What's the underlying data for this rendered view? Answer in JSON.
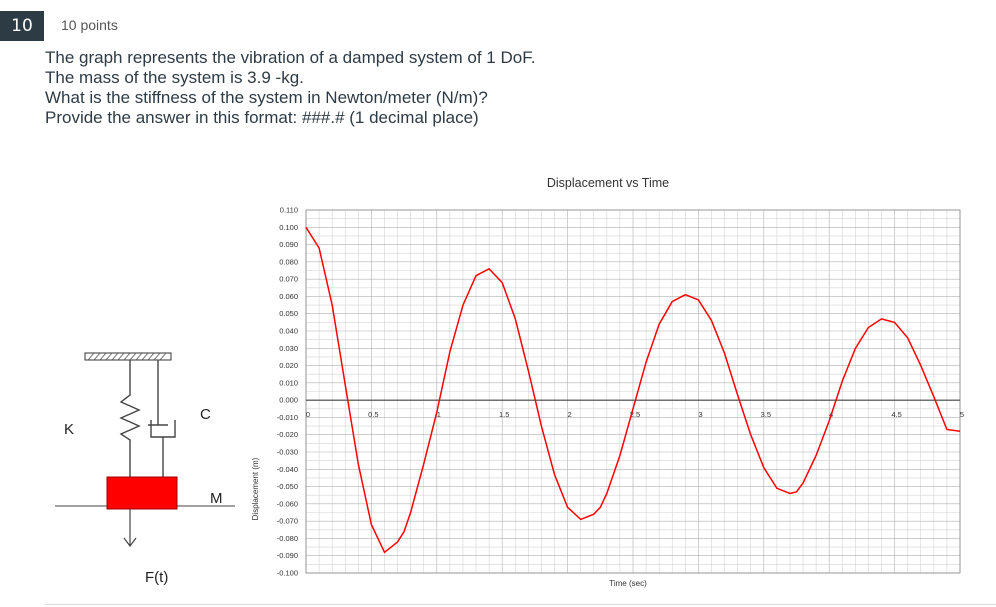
{
  "question": {
    "number": "10",
    "points": "10 points",
    "lines": [
      "The graph represents the vibration of a damped system of 1 DoF.",
      "The mass of the system is 3.9 -kg.",
      "What is the stiffness of the system in Newton/meter (N/m)?",
      "Provide the answer in this format: ###.# (1 decimal place)"
    ]
  },
  "diagram": {
    "label_k": "K",
    "label_c": "C",
    "label_m": "M",
    "label_f": "F(t)",
    "mass_color": "#ff0000"
  },
  "chart_data": {
    "type": "line",
    "title": "Displacement vs Time",
    "xlabel": "Time (sec)",
    "ylabel": "Displacement (m)",
    "xlim": [
      0,
      5
    ],
    "ylim": [
      -0.1,
      0.11
    ],
    "grid": true,
    "x_tick_labels": [
      "0",
      "0.5",
      "1",
      "1.5",
      "2",
      "2.5",
      "3",
      "3.5",
      "4",
      "4.5",
      "5"
    ],
    "y_tick_labels": [
      "0.110",
      "0.100",
      "0.090",
      "0.080",
      "0.070",
      "0.060",
      "0.050",
      "0.040",
      "0.030",
      "0.020",
      "0.010",
      "0.000",
      "-0.010",
      "-0.020",
      "-0.030",
      "-0.040",
      "-0.050",
      "-0.060",
      "-0.070",
      "-0.080",
      "-0.090",
      "-0.100"
    ],
    "line_color": "#ff0000",
    "series": [
      {
        "x": [
          0,
          0.1,
          0.2,
          0.3,
          0.4,
          0.5,
          0.6,
          0.7,
          0.75,
          0.8,
          0.9,
          1.0,
          1.1,
          1.2,
          1.3,
          1.4,
          1.5,
          1.6,
          1.7,
          1.8,
          1.9,
          2.0,
          2.1,
          2.2,
          2.25,
          2.3,
          2.4,
          2.5,
          2.6,
          2.7,
          2.8,
          2.9,
          3.0,
          3.1,
          3.2,
          3.3,
          3.4,
          3.5,
          3.6,
          3.7,
          3.75,
          3.8,
          3.9,
          4.0,
          4.1,
          4.2,
          4.3,
          4.4,
          4.5,
          4.6,
          4.7,
          4.8,
          4.9,
          5.0
        ],
        "y": [
          0.1,
          0.088,
          0.055,
          0.009,
          -0.037,
          -0.072,
          -0.088,
          -0.082,
          -0.076,
          -0.065,
          -0.037,
          -0.007,
          0.028,
          0.055,
          0.072,
          0.076,
          0.068,
          0.047,
          0.017,
          -0.015,
          -0.043,
          -0.062,
          -0.069,
          -0.066,
          -0.062,
          -0.054,
          -0.032,
          -0.005,
          0.022,
          0.044,
          0.057,
          0.061,
          0.058,
          0.046,
          0.027,
          0.003,
          -0.02,
          -0.039,
          -0.051,
          -0.054,
          -0.053,
          -0.048,
          -0.032,
          -0.012,
          0.011,
          0.03,
          0.042,
          0.047,
          0.045,
          0.036,
          0.02,
          0.002,
          -0.017,
          -0.018
        ]
      }
    ]
  }
}
